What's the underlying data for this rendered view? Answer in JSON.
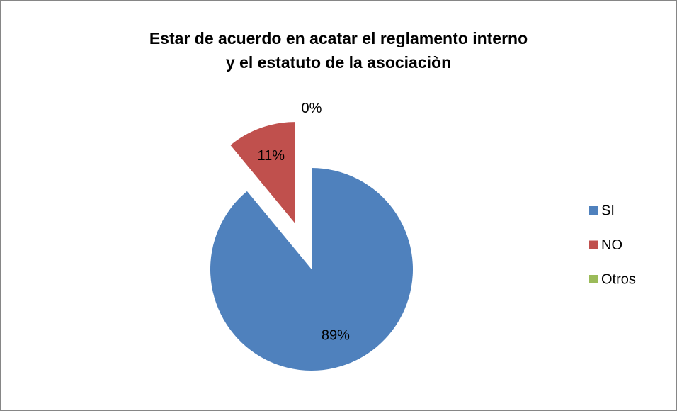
{
  "chart_data": {
    "type": "pie",
    "title": [
      "Estar de acuerdo en acatar el reglamento interno",
      "y el estatuto de la asociaciòn"
    ],
    "categories": [
      "SI",
      "NO",
      "Otros"
    ],
    "values": [
      89,
      11,
      0
    ],
    "value_labels": [
      "89%",
      "11%",
      "0%"
    ],
    "colors": [
      "#4f81bd",
      "#c0504d",
      "#9bbb59"
    ],
    "legend": "right"
  }
}
